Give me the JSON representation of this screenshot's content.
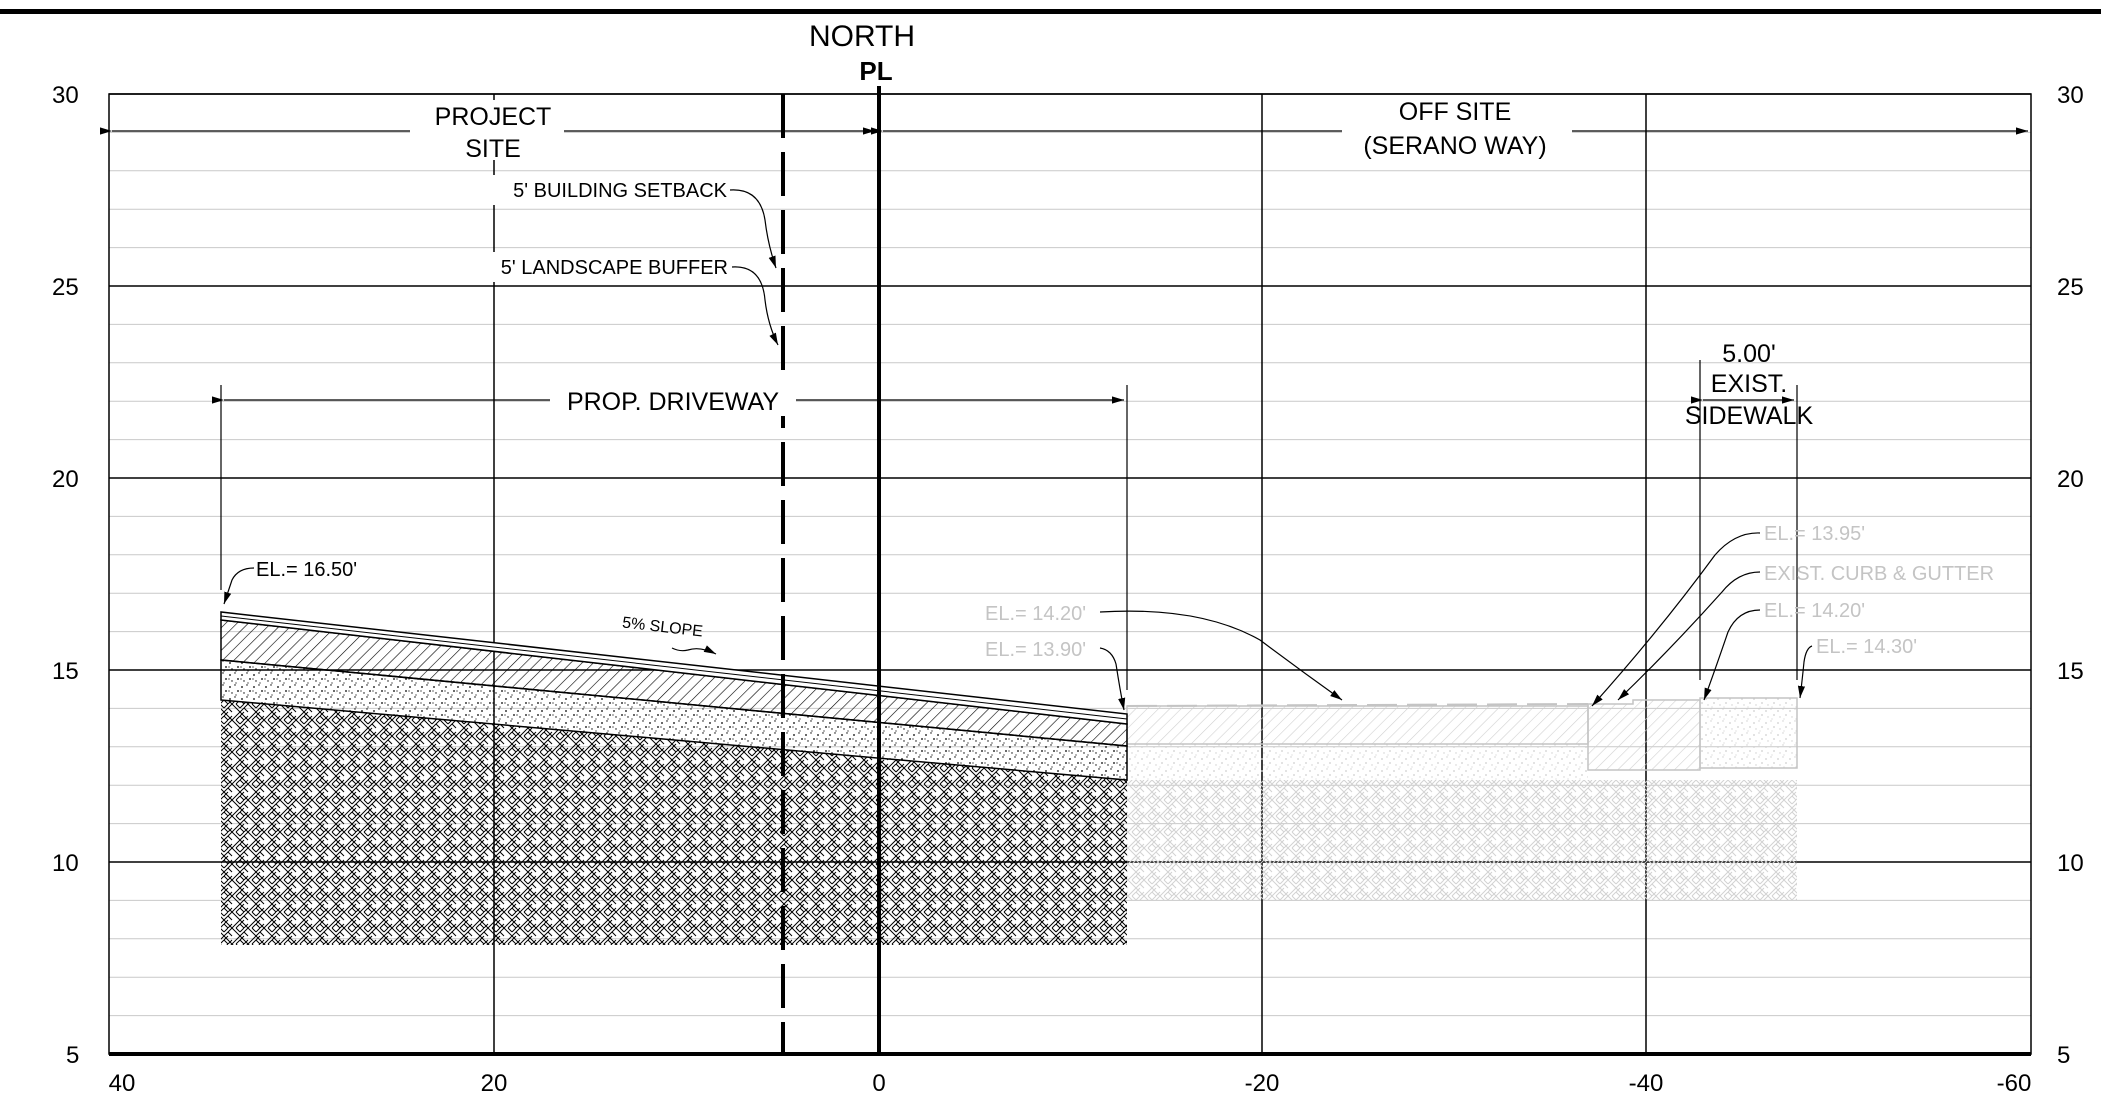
{
  "header": {
    "north_label": "NORTH",
    "pl_symbol": "PL"
  },
  "axes": {
    "y_ticks": [
      "30",
      "25",
      "20",
      "15",
      "10",
      "5"
    ],
    "x_ticks": [
      "40",
      "20",
      "0",
      "-20",
      "-40",
      "-60"
    ]
  },
  "zones": {
    "project_site_line1": "PROJECT",
    "project_site_line2": "SITE",
    "off_site_line1": "OFF SITE",
    "off_site_line2": "(SERANO WAY)"
  },
  "callouts": {
    "building_setback": "5' BUILDING SETBACK",
    "landscape_buffer": "5' LANDSCAPE BUFFER",
    "prop_driveway": "PROP. DRIVEWAY",
    "slope": "5% SLOPE",
    "sidewalk_width": "5.00'",
    "sidewalk_line1": "EXIST.",
    "sidewalk_line2": "SIDEWALK",
    "el_1650": "EL.= 16.50'",
    "el_1420_left": "EL.= 14.20'",
    "el_1390": "EL.= 13.90'",
    "el_1395": "EL.= 13.95'",
    "curb_gutter": "EXIST. CURB & GUTTER",
    "el_1420_right": "EL.= 14.20'",
    "el_1430": "EL.= 14.30'"
  },
  "colors": {
    "line": "#000000",
    "grid_minor": "#c9c9c9",
    "existing": "#c4c4c4",
    "background": "#ffffff"
  }
}
